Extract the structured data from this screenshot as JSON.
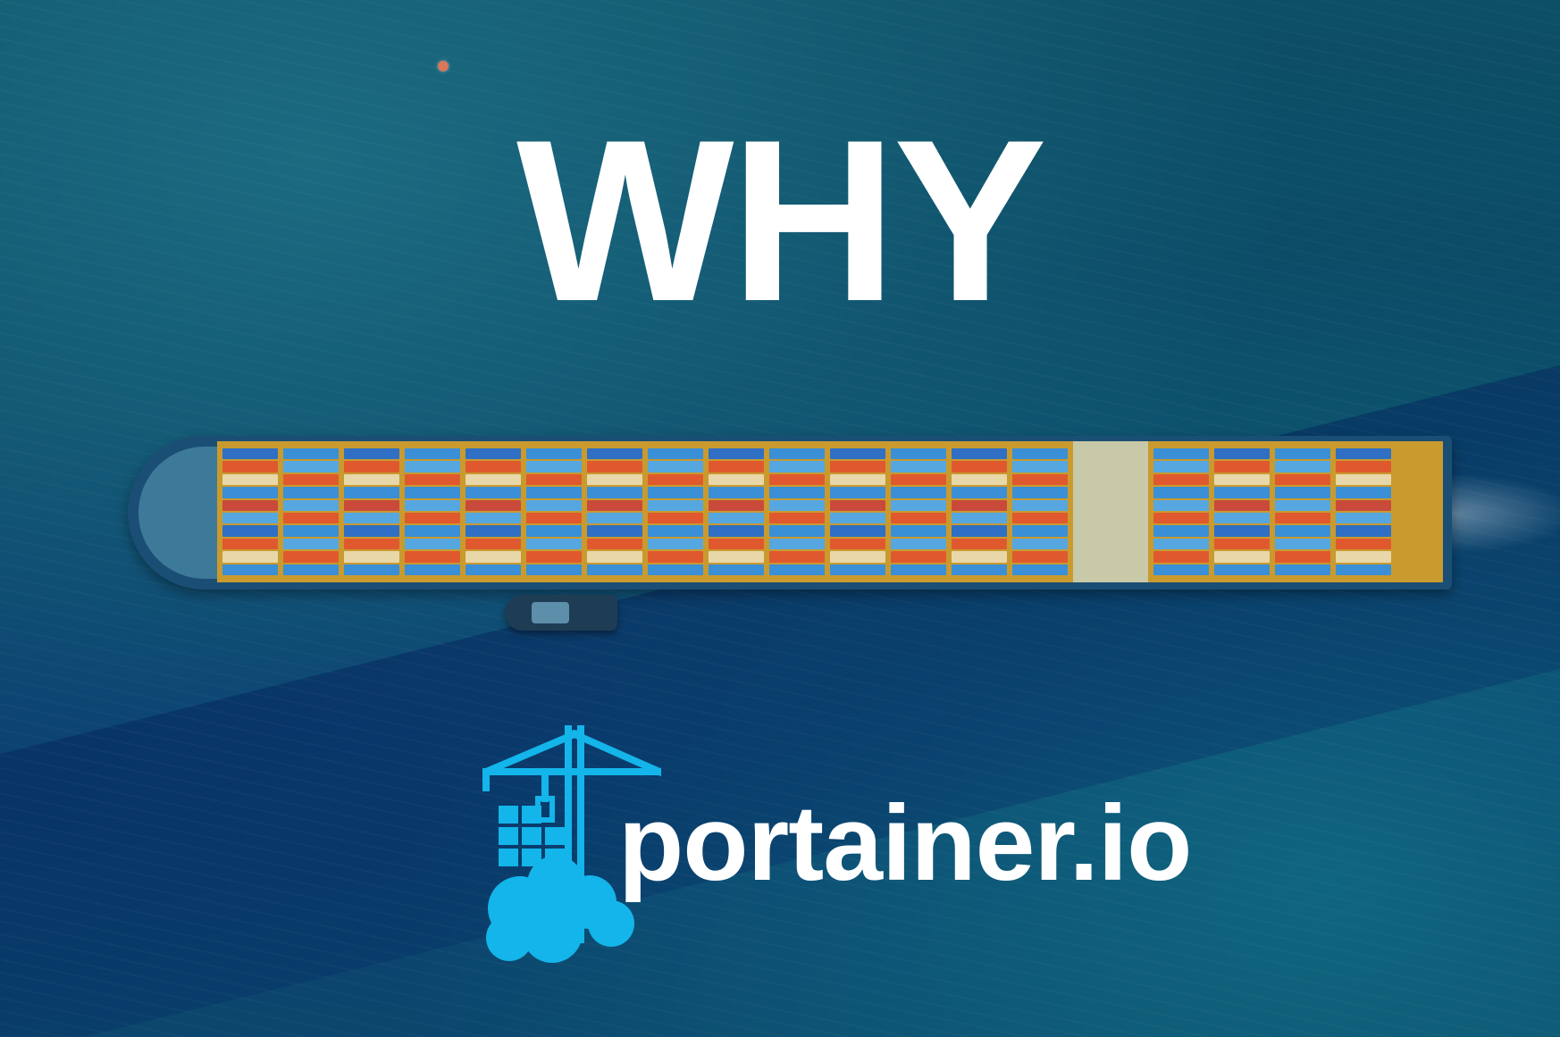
{
  "headline": "WHY",
  "brand": {
    "name": "portainer.io",
    "logo_icon": "portainer-crane-cloud-icon",
    "accent_color": "#13b5ea",
    "text_color": "#ffffff"
  },
  "scene": {
    "water_color": "#0b4a68",
    "ship_icon": "container-ship",
    "container_colors": [
      "#2f6fc4",
      "#e0592e",
      "#e8d7a8",
      "#3a8fd6",
      "#c94a3a",
      "#56a7e0"
    ]
  }
}
